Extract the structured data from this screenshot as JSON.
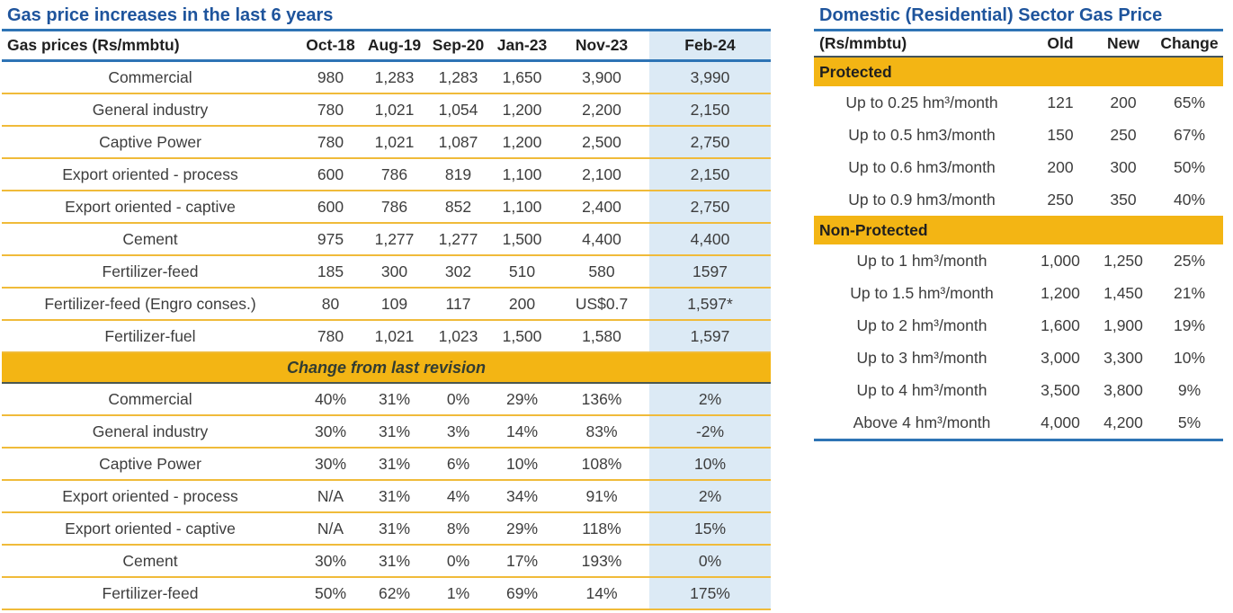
{
  "colors": {
    "title_blue": "#1e549c",
    "rule_blue": "#2e74b5",
    "banner_yellow": "#f3b514",
    "row_separator_yellow": "#f0bb3a",
    "feb24_highlight_blue": "#dceaf5",
    "banner_border_dark": "#4b5850",
    "text_dark": "#3d3d3d"
  },
  "left_table": {
    "title": "Gas price increases in the last 6 years",
    "columns": [
      "Gas prices (Rs/mmbtu)",
      "Oct-18",
      "Aug-19",
      "Sep-20",
      "Jan-23",
      "Nov-23",
      "Feb-24"
    ],
    "price_rows": [
      {
        "label": "Commercial",
        "values": [
          "980",
          "1,283",
          "1,283",
          "1,650",
          "3,900",
          "3,990"
        ]
      },
      {
        "label": "General industry",
        "values": [
          "780",
          "1,021",
          "1,054",
          "1,200",
          "2,200",
          "2,150"
        ]
      },
      {
        "label": "Captive Power",
        "values": [
          "780",
          "1,021",
          "1,087",
          "1,200",
          "2,500",
          "2,750"
        ]
      },
      {
        "label": "Export oriented - process",
        "values": [
          "600",
          "786",
          "819",
          "1,100",
          "2,100",
          "2,150"
        ]
      },
      {
        "label": "Export oriented - captive",
        "values": [
          "600",
          "786",
          "852",
          "1,100",
          "2,400",
          "2,750"
        ]
      },
      {
        "label": "Cement",
        "values": [
          "975",
          "1,277",
          "1,277",
          "1,500",
          "4,400",
          "4,400"
        ]
      },
      {
        "label": "Fertilizer-feed",
        "values": [
          "185",
          "300",
          "302",
          "510",
          "580",
          "1597"
        ]
      },
      {
        "label": "Fertilizer-feed (Engro conses.)",
        "values": [
          "80",
          "109",
          "117",
          "200",
          "US$0.7",
          "1,597*"
        ]
      },
      {
        "label": "Fertilizer-fuel",
        "values": [
          "780",
          "1,021",
          "1,023",
          "1,500",
          "1,580",
          "1,597"
        ]
      }
    ],
    "section_banner": "Change from last revision",
    "change_rows": [
      {
        "label": "Commercial",
        "values": [
          "40%",
          "31%",
          "0%",
          "29%",
          "136%",
          "2%"
        ]
      },
      {
        "label": "General industry",
        "values": [
          "30%",
          "31%",
          "3%",
          "14%",
          "83%",
          "-2%"
        ]
      },
      {
        "label": "Captive Power",
        "values": [
          "30%",
          "31%",
          "6%",
          "10%",
          "108%",
          "10%"
        ]
      },
      {
        "label": "Export oriented - process",
        "values": [
          "N/A",
          "31%",
          "4%",
          "34%",
          "91%",
          "2%"
        ]
      },
      {
        "label": "Export oriented - captive",
        "values": [
          "N/A",
          "31%",
          "8%",
          "29%",
          "118%",
          "15%"
        ]
      },
      {
        "label": "Cement",
        "values": [
          "30%",
          "31%",
          "0%",
          "17%",
          "193%",
          "0%"
        ]
      },
      {
        "label": "Fertilizer-feed",
        "values": [
          "50%",
          "62%",
          "1%",
          "69%",
          "14%",
          "175%"
        ]
      }
    ]
  },
  "right_table": {
    "title": "Domestic (Residential) Sector Gas Price",
    "columns": [
      "(Rs/mmbtu)",
      "Old",
      "New",
      "Change"
    ],
    "sections": [
      {
        "banner": "Protected",
        "rows": [
          {
            "label": "Up to 0.25 hm³/month",
            "values": [
              "121",
              "200",
              "65%"
            ]
          },
          {
            "label": "Up to 0.5 hm3/month",
            "values": [
              "150",
              "250",
              "67%"
            ]
          },
          {
            "label": "Up to 0.6 hm3/month",
            "values": [
              "200",
              "300",
              "50%"
            ]
          },
          {
            "label": "Up to 0.9 hm3/month",
            "values": [
              "250",
              "350",
              "40%"
            ]
          }
        ]
      },
      {
        "banner": "Non-Protected",
        "rows": [
          {
            "label": "Up to 1 hm³/month",
            "values": [
              "1,000",
              "1,250",
              "25%"
            ]
          },
          {
            "label": "Up to 1.5 hm³/month",
            "values": [
              "1,200",
              "1,450",
              "21%"
            ]
          },
          {
            "label": "Up to 2 hm³/month",
            "values": [
              "1,600",
              "1,900",
              "19%"
            ]
          },
          {
            "label": "Up to 3 hm³/month",
            "values": [
              "3,000",
              "3,300",
              "10%"
            ]
          },
          {
            "label": "Up to 4 hm³/month",
            "values": [
              "3,500",
              "3,800",
              "9%"
            ]
          },
          {
            "label": "Above 4 hm³/month",
            "values": [
              "4,000",
              "4,200",
              "5%"
            ]
          }
        ]
      }
    ]
  }
}
